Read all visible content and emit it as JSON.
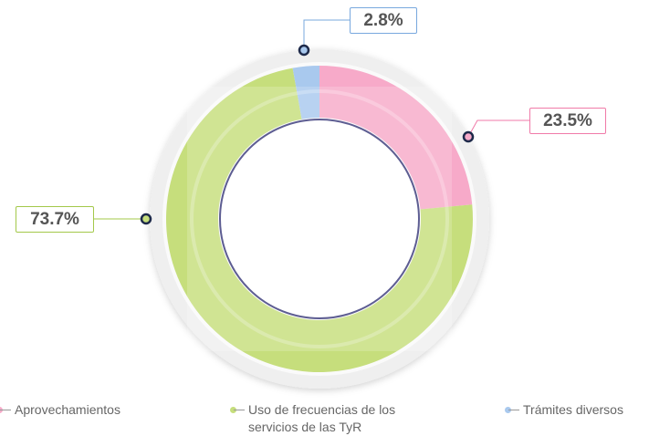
{
  "chart_data": {
    "type": "pie",
    "series": [
      {
        "name": "Aprovechamientos",
        "color": "#f7aac9",
        "values": [
          23.5
        ],
        "value_labels": [
          "23.5%"
        ]
      },
      {
        "name": "Uso de frecuencias de los servicios de las TyR",
        "color": "#c6de7c",
        "values": [
          73.7
        ],
        "value_labels": [
          "73.7%"
        ]
      },
      {
        "name": "Trámites diversos",
        "color": "#a9c9ee",
        "values": [
          2.8
        ],
        "value_labels": [
          "2.8%"
        ]
      }
    ]
  }
}
